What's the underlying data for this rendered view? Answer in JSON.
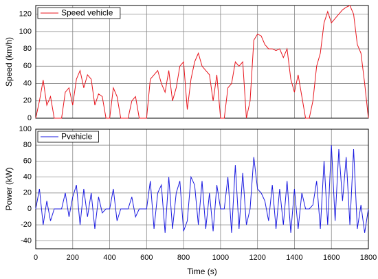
{
  "chart_data": [
    {
      "type": "line",
      "y_label": "Speed (km/h)",
      "x": [
        0,
        20,
        40,
        60,
        80,
        100,
        120,
        140,
        160,
        180,
        200,
        220,
        240,
        260,
        280,
        300,
        320,
        340,
        360,
        380,
        400,
        420,
        440,
        460,
        480,
        500,
        520,
        540,
        560,
        580,
        600,
        620,
        640,
        660,
        680,
        700,
        720,
        740,
        760,
        780,
        800,
        820,
        840,
        860,
        880,
        900,
        920,
        940,
        960,
        980,
        1000,
        1020,
        1040,
        1060,
        1080,
        1100,
        1120,
        1140,
        1160,
        1180,
        1200,
        1220,
        1240,
        1260,
        1280,
        1300,
        1320,
        1340,
        1360,
        1380,
        1400,
        1420,
        1440,
        1460,
        1480,
        1500,
        1520,
        1540,
        1560,
        1580,
        1600,
        1620,
        1640,
        1660,
        1680,
        1700,
        1720,
        1740,
        1760,
        1780,
        1800
      ],
      "series": [
        {
          "name": "Speed vehicle",
          "color": "#e8141c",
          "values": [
            0,
            20,
            44,
            15,
            25,
            0,
            0,
            0,
            30,
            35,
            15,
            45,
            55,
            35,
            50,
            45,
            15,
            28,
            25,
            0,
            0,
            35,
            25,
            0,
            0,
            0,
            20,
            25,
            0,
            0,
            0,
            45,
            50,
            55,
            40,
            30,
            55,
            20,
            35,
            60,
            65,
            10,
            45,
            65,
            75,
            60,
            55,
            50,
            20,
            50,
            0,
            0,
            35,
            40,
            65,
            60,
            65,
            0,
            20,
            90,
            97,
            95,
            85,
            80,
            80,
            78,
            80,
            70,
            80,
            45,
            30,
            50,
            25,
            0,
            0,
            20,
            60,
            75,
            110,
            123,
            110,
            115,
            120,
            125,
            128,
            130,
            120,
            85,
            75,
            40,
            0
          ]
        }
      ],
      "xlim": [
        0,
        1800
      ],
      "xticks": [
        0,
        200,
        400,
        600,
        800,
        1000,
        1200,
        1400,
        1600,
        1800
      ],
      "ylim": [
        0,
        130
      ],
      "yticks": [
        0,
        20,
        40,
        60,
        80,
        100,
        120
      ],
      "grid": true,
      "legend": "upper left"
    },
    {
      "type": "line",
      "y_label": "Power (kW)",
      "x_label": "Time (s)",
      "x": [
        0,
        20,
        40,
        60,
        80,
        100,
        120,
        140,
        160,
        180,
        200,
        220,
        240,
        260,
        280,
        300,
        320,
        340,
        360,
        380,
        400,
        420,
        440,
        460,
        480,
        500,
        520,
        540,
        560,
        580,
        600,
        620,
        640,
        660,
        680,
        700,
        720,
        740,
        760,
        780,
        800,
        820,
        840,
        860,
        880,
        900,
        920,
        940,
        960,
        980,
        1000,
        1020,
        1040,
        1060,
        1080,
        1100,
        1120,
        1140,
        1160,
        1180,
        1200,
        1220,
        1240,
        1260,
        1280,
        1300,
        1320,
        1340,
        1360,
        1380,
        1400,
        1420,
        1440,
        1460,
        1480,
        1500,
        1520,
        1540,
        1560,
        1580,
        1600,
        1620,
        1640,
        1660,
        1680,
        1700,
        1720,
        1740,
        1760,
        1780,
        1800
      ],
      "series": [
        {
          "name": "Pvehicle",
          "color": "#1a1ae0",
          "values": [
            0,
            25,
            -20,
            10,
            -15,
            0,
            0,
            0,
            20,
            -10,
            15,
            30,
            -20,
            25,
            -10,
            20,
            -25,
            15,
            -5,
            0,
            0,
            25,
            -15,
            0,
            0,
            0,
            15,
            -10,
            0,
            0,
            0,
            35,
            -25,
            20,
            30,
            -30,
            40,
            -25,
            20,
            35,
            -28,
            -15,
            40,
            30,
            -20,
            35,
            -25,
            20,
            -28,
            30,
            0,
            0,
            40,
            -30,
            55,
            -25,
            45,
            -20,
            0,
            65,
            25,
            20,
            10,
            -15,
            30,
            -25,
            25,
            -20,
            35,
            -30,
            25,
            -25,
            20,
            0,
            0,
            5,
            35,
            -25,
            60,
            -20,
            80,
            -15,
            75,
            10,
            65,
            -20,
            75,
            -25,
            5,
            -30,
            0
          ]
        }
      ],
      "xlim": [
        0,
        1800
      ],
      "xticks": [
        0,
        200,
        400,
        600,
        800,
        1000,
        1200,
        1400,
        1600,
        1800
      ],
      "ylim": [
        -50,
        100
      ],
      "yticks": [
        -40,
        -20,
        0,
        20,
        40,
        60,
        80,
        100
      ],
      "grid": true,
      "legend": "upper left"
    }
  ]
}
